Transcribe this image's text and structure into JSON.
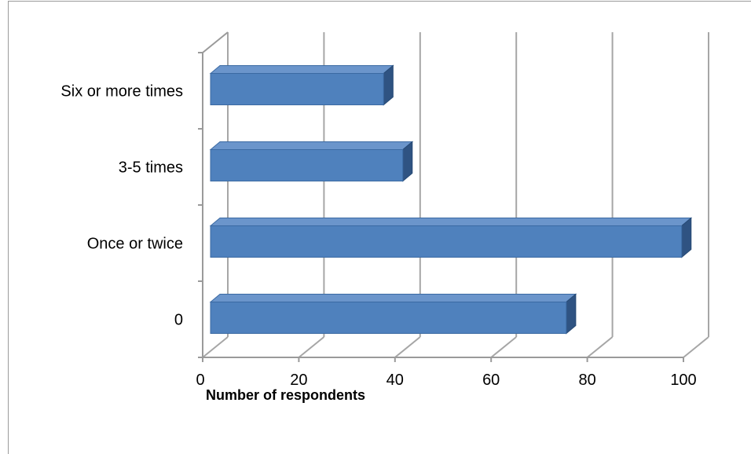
{
  "chart_data": {
    "type": "bar",
    "orientation": "horizontal",
    "style": "3d",
    "categories": [
      "0",
      "Once or twice",
      "3-5 times",
      "Six or more times"
    ],
    "series": [
      {
        "values": [
          74,
          98,
          40,
          36
        ]
      }
    ],
    "xlabel": "Number of respondents",
    "ylabel": "",
    "xlim": [
      0,
      100
    ],
    "xticks": [
      0,
      20,
      40,
      60,
      80,
      100
    ],
    "grid": true,
    "legend": "none",
    "colors": {
      "bar_front": "#4f81bd",
      "bar_top": "#6b95cb",
      "bar_side": "#2f5382",
      "grid": "#a6a6a6",
      "frame": "#9a9a9a"
    }
  }
}
